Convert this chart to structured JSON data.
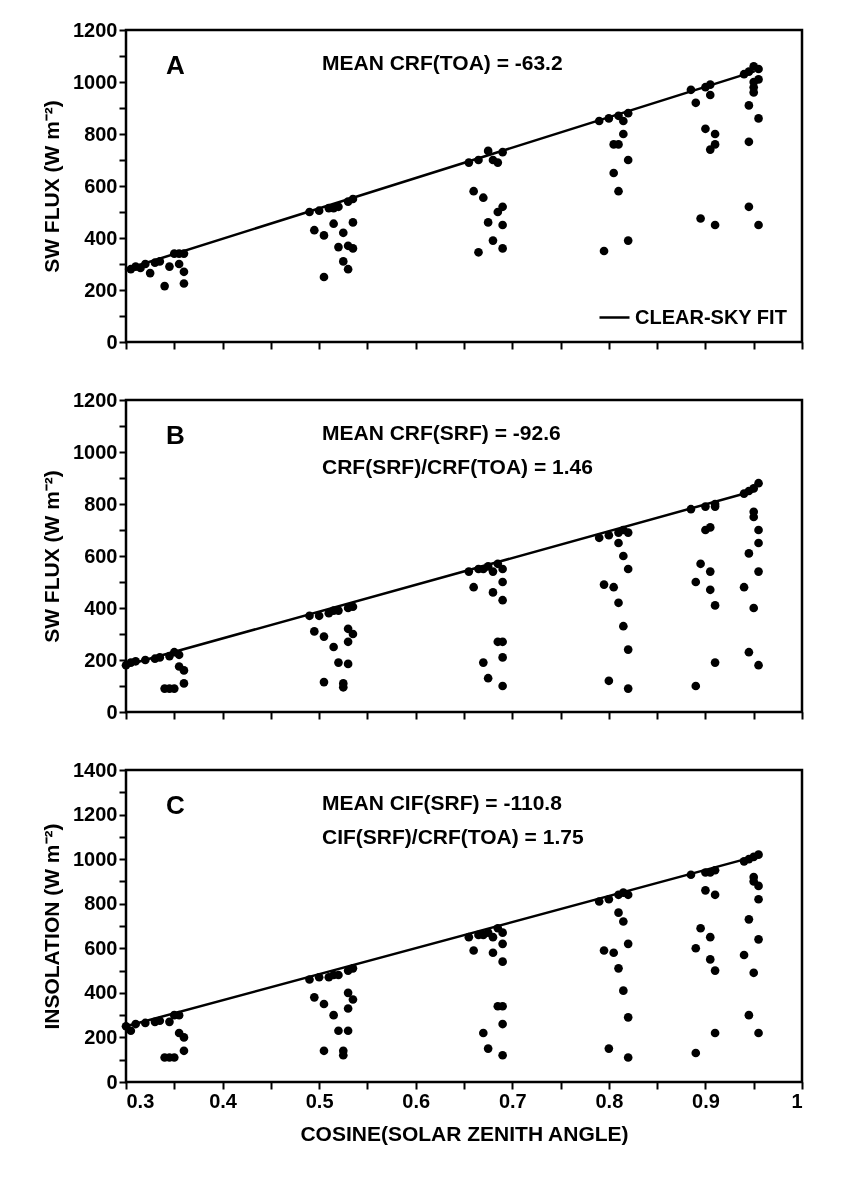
{
  "chart_data": [
    {
      "type": "scatter",
      "ylabel": "SW FLUX (W m⁻²)",
      "annotations": [
        "A",
        "MEAN CRF(TOA) = -63.2"
      ],
      "legend": "bottom right",
      "tick_labels": "y",
      "xlim": [
        0.3,
        1.0
      ],
      "xticks": [
        0.3,
        {
          "value": 0.35,
          "label": null
        },
        0.4,
        {
          "value": 0.45,
          "label": null
        },
        0.5,
        {
          "value": 0.55,
          "label": null
        },
        0.6,
        {
          "value": 0.65,
          "label": null
        },
        0.7,
        {
          "value": 0.75,
          "label": null
        },
        0.8,
        {
          "value": 0.85,
          "label": null
        },
        0.9,
        {
          "value": 0.95,
          "label": null
        },
        1.0
      ],
      "ylim": [
        0,
        1200
      ],
      "yticks": [
        0,
        {
          "value": 100,
          "label": null
        },
        200,
        {
          "value": 300,
          "label": null
        },
        400,
        {
          "value": 500,
          "label": null
        },
        600,
        {
          "value": 700,
          "label": null
        },
        800,
        {
          "value": 900,
          "label": null
        },
        1000,
        {
          "value": 1100,
          "label": null
        },
        1200
      ],
      "series": [
        {
          "color": "#000000",
          "marker": "circle",
          "x": [
            0.305,
            0.31,
            0.315,
            0.32,
            0.325,
            0.33,
            0.335,
            0.34,
            0.345,
            0.35,
            0.355,
            0.355,
            0.36,
            0.36,
            0.36,
            0.49,
            0.495,
            0.5,
            0.505,
            0.505,
            0.51,
            0.515,
            0.515,
            0.52,
            0.52,
            0.525,
            0.525,
            0.53,
            0.53,
            0.53,
            0.535,
            0.535,
            0.535,
            0.655,
            0.66,
            0.665,
            0.665,
            0.67,
            0.675,
            0.675,
            0.68,
            0.68,
            0.685,
            0.685,
            0.69,
            0.69,
            0.69,
            0.69,
            0.79,
            0.795,
            0.8,
            0.805,
            0.81,
            0.81,
            0.81,
            0.815,
            0.815,
            0.82,
            0.82,
            0.82,
            0.805,
            0.885,
            0.89,
            0.895,
            0.9,
            0.9,
            0.905,
            0.905,
            0.91,
            0.91,
            0.91,
            0.905,
            0.94,
            0.945,
            0.945,
            0.945,
            0.945,
            0.95,
            0.95,
            0.95,
            0.955,
            0.955,
            0.955,
            0.955,
            0.95
          ],
          "values": [
            280,
            290,
            285,
            300,
            265,
            305,
            310,
            215,
            290,
            340,
            340,
            300,
            270,
            225,
            340,
            500,
            430,
            505,
            250,
            410,
            515,
            515,
            455,
            520,
            365,
            310,
            420,
            540,
            370,
            280,
            550,
            460,
            360,
            690,
            580,
            700,
            345,
            555,
            735,
            460,
            700,
            390,
            690,
            500,
            730,
            520,
            450,
            360,
            850,
            350,
            860,
            650,
            870,
            760,
            580,
            800,
            850,
            880,
            700,
            390,
            760,
            970,
            920,
            475,
            980,
            820,
            740,
            990,
            800,
            760,
            450,
            950,
            1030,
            1040,
            910,
            770,
            520,
            1060,
            1000,
            960,
            1050,
            1010,
            860,
            450,
            980
          ]
        },
        {
          "type": "line",
          "name": "CLEAR-SKY FIT",
          "color": "#000000",
          "x": [
            0.3,
            0.95
          ],
          "values": [
            280,
            1040
          ]
        }
      ]
    },
    {
      "type": "scatter",
      "ylabel": "SW FLUX (W m⁻²)",
      "annotations": [
        "B",
        "MEAN CRF(SRF) = -92.6",
        "CRF(SRF)/CRF(TOA) = 1.46"
      ],
      "tick_labels": "y",
      "xlim": [
        0.3,
        1.0
      ],
      "xticks": [
        0.3,
        {
          "value": 0.35,
          "label": null
        },
        0.4,
        {
          "value": 0.45,
          "label": null
        },
        0.5,
        {
          "value": 0.55,
          "label": null
        },
        0.6,
        {
          "value": 0.65,
          "label": null
        },
        0.7,
        {
          "value": 0.75,
          "label": null
        },
        0.8,
        {
          "value": 0.85,
          "label": null
        },
        0.9,
        {
          "value": 0.95,
          "label": null
        },
        1.0
      ],
      "ylim": [
        0,
        1200
      ],
      "yticks": [
        0,
        {
          "value": 100,
          "label": null
        },
        200,
        {
          "value": 300,
          "label": null
        },
        400,
        {
          "value": 500,
          "label": null
        },
        600,
        {
          "value": 700,
          "label": null
        },
        800,
        {
          "value": 900,
          "label": null
        },
        1000,
        {
          "value": 1100,
          "label": null
        },
        1200
      ],
      "series": [
        {
          "color": "#000000",
          "marker": "circle",
          "x": [
            0.3,
            0.305,
            0.31,
            0.32,
            0.33,
            0.335,
            0.34,
            0.345,
            0.35,
            0.35,
            0.355,
            0.355,
            0.36,
            0.36,
            0.345,
            0.49,
            0.495,
            0.5,
            0.505,
            0.505,
            0.51,
            0.515,
            0.515,
            0.52,
            0.52,
            0.525,
            0.525,
            0.53,
            0.53,
            0.53,
            0.53,
            0.535,
            0.535,
            0.655,
            0.66,
            0.665,
            0.67,
            0.67,
            0.675,
            0.675,
            0.68,
            0.68,
            0.685,
            0.685,
            0.69,
            0.69,
            0.69,
            0.69,
            0.69,
            0.69,
            0.79,
            0.795,
            0.8,
            0.8,
            0.805,
            0.81,
            0.81,
            0.81,
            0.815,
            0.815,
            0.815,
            0.82,
            0.82,
            0.82,
            0.82,
            0.885,
            0.89,
            0.89,
            0.895,
            0.9,
            0.9,
            0.905,
            0.905,
            0.91,
            0.91,
            0.91,
            0.91,
            0.905,
            0.94,
            0.94,
            0.945,
            0.945,
            0.945,
            0.95,
            0.95,
            0.95,
            0.95,
            0.955,
            0.955,
            0.955,
            0.955,
            0.955
          ],
          "values": [
            180,
            190,
            195,
            200,
            205,
            210,
            90,
            90,
            230,
            90,
            220,
            175,
            160,
            110,
            215,
            370,
            310,
            370,
            115,
            290,
            380,
            390,
            250,
            390,
            190,
            110,
            95,
            400,
            320,
            270,
            185,
            405,
            300,
            540,
            480,
            550,
            550,
            190,
            560,
            130,
            540,
            460,
            570,
            270,
            550,
            500,
            430,
            270,
            210,
            100,
            670,
            490,
            680,
            120,
            480,
            690,
            650,
            420,
            700,
            600,
            330,
            690,
            550,
            240,
            90,
            780,
            500,
            100,
            570,
            790,
            700,
            470,
            540,
            790,
            800,
            410,
            190,
            710,
            840,
            480,
            850,
            610,
            230,
            860,
            770,
            750,
            400,
            880,
            700,
            650,
            540,
            180
          ]
        },
        {
          "type": "line",
          "color": "#000000",
          "x": [
            0.3,
            0.95
          ],
          "values": [
            180,
            850
          ]
        }
      ]
    },
    {
      "type": "scatter",
      "ylabel": "INSOLATION (W m⁻²)",
      "xlabel": "COSINE(SOLAR ZENITH ANGLE)",
      "annotations": [
        "C",
        "MEAN CIF(SRF) = -110.8",
        "CIF(SRF)/CRF(TOA) = 1.75"
      ],
      "xlim": [
        0.3,
        1.0
      ],
      "xticks": [
        0.3,
        {
          "value": 0.35,
          "label": null
        },
        0.4,
        {
          "value": 0.45,
          "label": null
        },
        0.5,
        {
          "value": 0.55,
          "label": null
        },
        0.6,
        {
          "value": 0.65,
          "label": null
        },
        0.7,
        {
          "value": 0.75,
          "label": null
        },
        0.8,
        {
          "value": 0.85,
          "label": null
        },
        0.9,
        {
          "value": 0.95,
          "label": null
        },
        1.0
      ],
      "ylim": [
        0,
        1400
      ],
      "yticks": [
        0,
        {
          "value": 100,
          "label": null
        },
        200,
        {
          "value": 300,
          "label": null
        },
        400,
        {
          "value": 500,
          "label": null
        },
        600,
        {
          "value": 700,
          "label": null
        },
        800,
        {
          "value": 900,
          "label": null
        },
        1000,
        {
          "value": 1100,
          "label": null
        },
        1200,
        {
          "value": 1300,
          "label": null
        },
        1400
      ],
      "series": [
        {
          "color": "#000000",
          "marker": "circle",
          "x": [
            0.3,
            0.305,
            0.31,
            0.32,
            0.33,
            0.335,
            0.34,
            0.345,
            0.35,
            0.35,
            0.355,
            0.355,
            0.36,
            0.36,
            0.345,
            0.49,
            0.495,
            0.5,
            0.505,
            0.505,
            0.51,
            0.515,
            0.515,
            0.52,
            0.52,
            0.525,
            0.525,
            0.53,
            0.53,
            0.53,
            0.53,
            0.535,
            0.535,
            0.655,
            0.66,
            0.665,
            0.67,
            0.67,
            0.675,
            0.675,
            0.68,
            0.68,
            0.685,
            0.685,
            0.69,
            0.69,
            0.69,
            0.69,
            0.69,
            0.69,
            0.79,
            0.795,
            0.8,
            0.8,
            0.805,
            0.81,
            0.81,
            0.81,
            0.815,
            0.815,
            0.815,
            0.82,
            0.82,
            0.82,
            0.82,
            0.885,
            0.89,
            0.89,
            0.895,
            0.9,
            0.9,
            0.905,
            0.905,
            0.91,
            0.91,
            0.91,
            0.91,
            0.905,
            0.94,
            0.94,
            0.945,
            0.945,
            0.945,
            0.95,
            0.95,
            0.95,
            0.95,
            0.955,
            0.955,
            0.955,
            0.955,
            0.955
          ],
          "values": [
            250,
            230,
            260,
            265,
            270,
            275,
            110,
            110,
            300,
            110,
            300,
            220,
            200,
            140,
            270,
            460,
            380,
            470,
            140,
            350,
            470,
            480,
            300,
            480,
            230,
            140,
            120,
            500,
            400,
            330,
            230,
            510,
            370,
            650,
            590,
            660,
            660,
            220,
            670,
            150,
            650,
            580,
            690,
            340,
            670,
            620,
            540,
            340,
            260,
            120,
            810,
            590,
            820,
            150,
            580,
            840,
            760,
            510,
            850,
            720,
            410,
            840,
            620,
            290,
            110,
            930,
            600,
            130,
            690,
            940,
            860,
            550,
            650,
            950,
            840,
            500,
            220,
            940,
            990,
            570,
            1000,
            730,
            300,
            1010,
            920,
            900,
            490,
            1020,
            880,
            820,
            640,
            220
          ]
        },
        {
          "type": "line",
          "color": "#000000",
          "x": [
            0.3,
            0.95
          ],
          "values": [
            250,
            1010
          ]
        }
      ]
    }
  ]
}
